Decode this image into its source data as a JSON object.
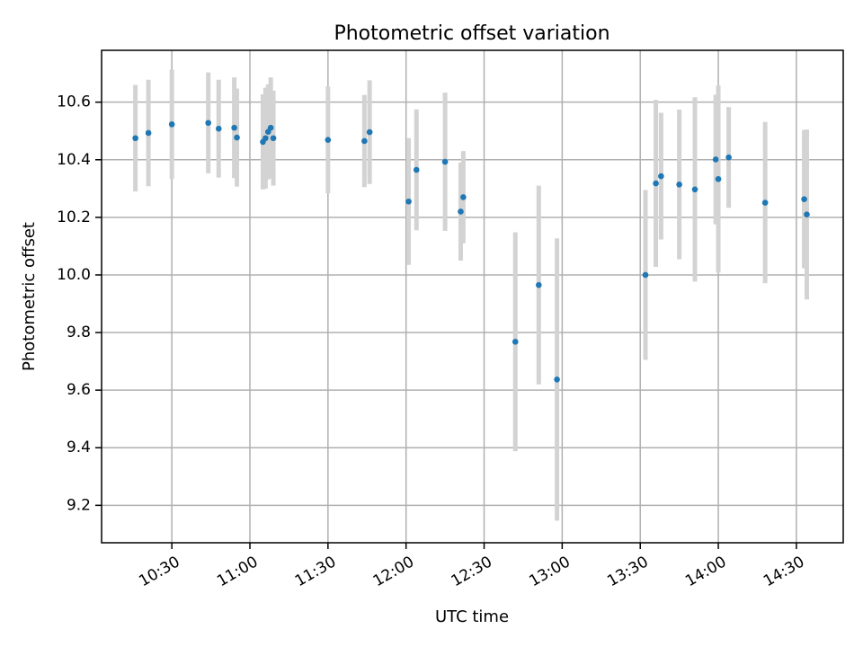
{
  "chart_data": {
    "type": "scatter",
    "title": "Photometric offset variation",
    "xlabel": "UTC time",
    "ylabel": "Photometric offset",
    "xlim": [
      "10:03",
      "14:48"
    ],
    "ylim": [
      9.07,
      10.78
    ],
    "grid": true,
    "x_ticks": [
      "10:30",
      "11:00",
      "11:30",
      "12:00",
      "12:30",
      "13:00",
      "13:30",
      "14:00",
      "14:30"
    ],
    "y_ticks": [
      "9.2",
      "9.4",
      "9.6",
      "9.8",
      "10.0",
      "10.2",
      "10.4",
      "10.6"
    ],
    "colors": {
      "marker": "#1f77b4",
      "errorbar": "#d3d3d3",
      "grid": "#b0b0b0"
    },
    "series": [
      {
        "name": "Photometric offset",
        "points": [
          {
            "t": "10:16",
            "y": 10.475,
            "err": 0.185
          },
          {
            "t": "10:21",
            "y": 10.493,
            "err": 0.185
          },
          {
            "t": "10:30",
            "y": 10.523,
            "err": 0.19
          },
          {
            "t": "10:44",
            "y": 10.528,
            "err": 0.175
          },
          {
            "t": "10:48",
            "y": 10.508,
            "err": 0.17
          },
          {
            "t": "10:54",
            "y": 10.511,
            "err": 0.175
          },
          {
            "t": "10:55",
            "y": 10.477,
            "err": 0.17
          },
          {
            "t": "11:05",
            "y": 10.462,
            "err": 0.165
          },
          {
            "t": "11:06",
            "y": 10.475,
            "err": 0.175
          },
          {
            "t": "11:07",
            "y": 10.497,
            "err": 0.165
          },
          {
            "t": "11:08",
            "y": 10.511,
            "err": 0.175
          },
          {
            "t": "11:09",
            "y": 10.475,
            "err": 0.165
          },
          {
            "t": "11:30",
            "y": 10.469,
            "err": 0.185
          },
          {
            "t": "11:44",
            "y": 10.465,
            "err": 0.16
          },
          {
            "t": "11:46",
            "y": 10.496,
            "err": 0.18
          },
          {
            "t": "12:01",
            "y": 10.255,
            "err": 0.22
          },
          {
            "t": "12:04",
            "y": 10.365,
            "err": 0.21
          },
          {
            "t": "12:15",
            "y": 10.393,
            "err": 0.24
          },
          {
            "t": "12:21",
            "y": 10.22,
            "err": 0.17
          },
          {
            "t": "12:22",
            "y": 10.27,
            "err": 0.16
          },
          {
            "t": "12:42",
            "y": 9.768,
            "err": 0.38
          },
          {
            "t": "12:51",
            "y": 9.965,
            "err": 0.345
          },
          {
            "t": "12:58",
            "y": 9.637,
            "err": 0.49
          },
          {
            "t": "13:32",
            "y": 10.0,
            "err": 0.295
          },
          {
            "t": "13:36",
            "y": 10.318,
            "err": 0.29
          },
          {
            "t": "13:38",
            "y": 10.343,
            "err": 0.22
          },
          {
            "t": "13:45",
            "y": 10.314,
            "err": 0.26
          },
          {
            "t": "13:51",
            "y": 10.297,
            "err": 0.32
          },
          {
            "t": "13:59",
            "y": 10.401,
            "err": 0.225
          },
          {
            "t": "14:00",
            "y": 10.333,
            "err": 0.325
          },
          {
            "t": "14:04",
            "y": 10.408,
            "err": 0.175
          },
          {
            "t": "14:18",
            "y": 10.251,
            "err": 0.28
          },
          {
            "t": "14:33",
            "y": 10.263,
            "err": 0.24
          },
          {
            "t": "14:34",
            "y": 10.21,
            "err": 0.295
          }
        ]
      }
    ]
  }
}
